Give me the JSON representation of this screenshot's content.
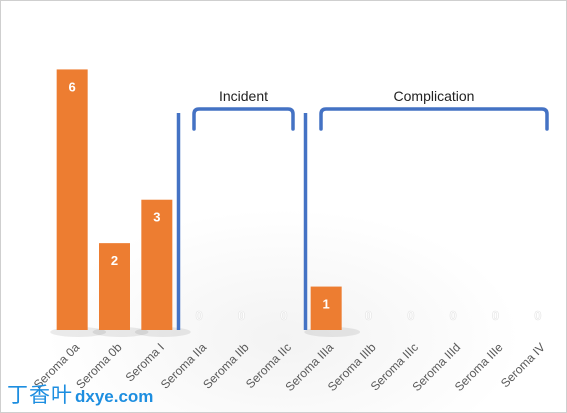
{
  "chart_data": {
    "type": "bar",
    "categories": [
      "Seroma 0a",
      "Seroma 0b",
      "Seroma I",
      "Seroma IIa",
      "Seroma IIb",
      "Seroma IIc",
      "Seroma IIIa",
      "Seroma IIIb",
      "Seroma IIIc",
      "Seroma IIId",
      "Seroma IIIe",
      "Seroma IV"
    ],
    "values": [
      6,
      2,
      3,
      0,
      0,
      0,
      1,
      0,
      0,
      0,
      0,
      0
    ],
    "ylim": [
      0,
      7
    ],
    "grid": false,
    "legend": "none",
    "bar_color": "#ED7D31",
    "bracket_color": "#4472C4",
    "groups": [
      {
        "label": "Incident",
        "from_category": "Seroma IIa",
        "to_category": "Seroma IIc"
      },
      {
        "label": "Complication",
        "from_category": "Seroma IIIa",
        "to_category": "Seroma IV"
      }
    ]
  },
  "watermark": {
    "cn": "丁香叶",
    "en": "dxye.com",
    "color": "#1d8ee0"
  }
}
